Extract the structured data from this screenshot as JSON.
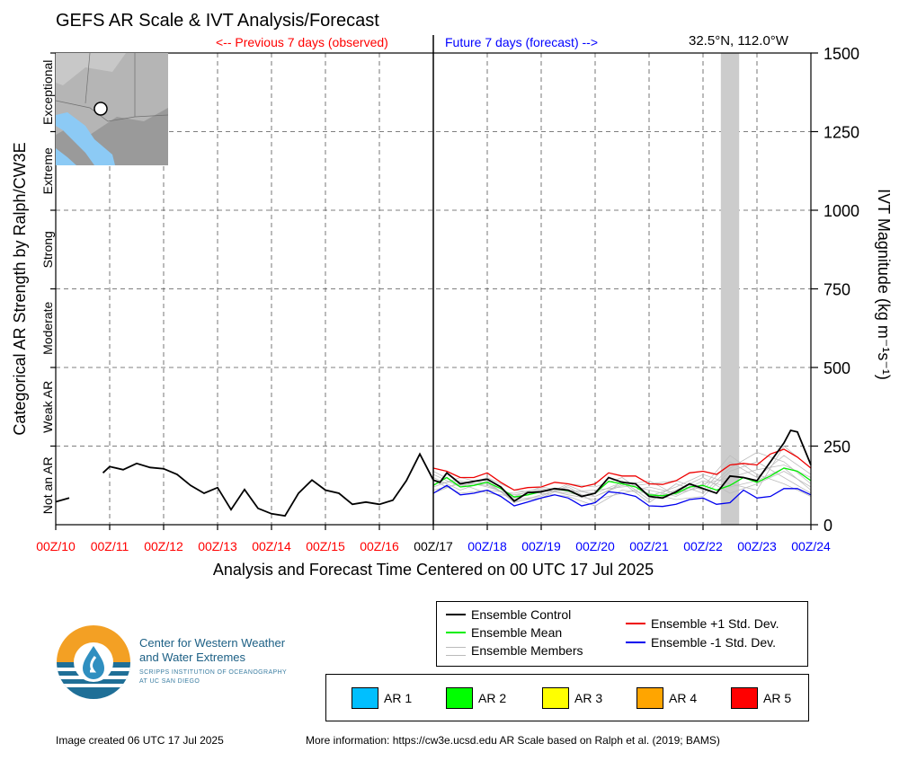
{
  "header": {
    "title": "GEFS AR Scale & IVT Analysis/Forecast",
    "previous_label": "<-- Previous 7 days (observed)",
    "future_label": "Future 7 days (forecast) -->",
    "location": "32.5°N, 112.0°W"
  },
  "chart_data": {
    "type": "line",
    "xlabel": "Analysis and Forecast Time Centered on 00 UTC 17 Jul 2025",
    "ylabel_right": "IVT Magnitude (kg m⁻¹s⁻¹)",
    "ylabel_left": "Categorical AR Strength by Ralph/CW3E",
    "ylim": [
      0,
      1500
    ],
    "y_ticks": [
      "0",
      "250",
      "500",
      "750",
      "1000",
      "1250",
      "1500"
    ],
    "x_range": [
      0,
      14
    ],
    "x_ticks": [
      {
        "label": "00Z/10",
        "period": "observed"
      },
      {
        "label": "00Z/11",
        "period": "observed"
      },
      {
        "label": "00Z/12",
        "period": "observed"
      },
      {
        "label": "00Z/13",
        "period": "observed"
      },
      {
        "label": "00Z/14",
        "period": "observed"
      },
      {
        "label": "00Z/15",
        "period": "observed"
      },
      {
        "label": "00Z/16",
        "period": "observed"
      },
      {
        "label": "00Z/17",
        "period": "now"
      },
      {
        "label": "00Z/18",
        "period": "forecast"
      },
      {
        "label": "00Z/19",
        "period": "forecast"
      },
      {
        "label": "00Z/20",
        "period": "forecast"
      },
      {
        "label": "00Z/21",
        "period": "forecast"
      },
      {
        "label": "00Z/22",
        "period": "forecast"
      },
      {
        "label": "00Z/23",
        "period": "forecast"
      },
      {
        "label": "00Z/24",
        "period": "forecast"
      }
    ],
    "categories": [
      {
        "label": "Not an AR",
        "y_min": 0,
        "y_max": 250
      },
      {
        "label": "Weak AR",
        "y_min": 250,
        "y_max": 500
      },
      {
        "label": "Moderate",
        "y_min": 500,
        "y_max": 750
      },
      {
        "label": "Strong",
        "y_min": 750,
        "y_max": 1000
      },
      {
        "label": "Extreme",
        "y_min": 1000,
        "y_max": 1250
      },
      {
        "label": "Exceptional",
        "y_min": 1250,
        "y_max": 1500
      }
    ],
    "now_x": 7,
    "shaded_span": [
      12.33,
      12.67
    ],
    "observed": {
      "segments": [
        [
          [
            0,
            73
          ],
          [
            0.25,
            85
          ]
        ],
        [
          [
            0.875,
            165
          ],
          [
            1,
            185
          ],
          [
            1.25,
            175
          ],
          [
            1.5,
            195
          ],
          [
            1.75,
            182
          ],
          [
            2,
            178
          ],
          [
            2.25,
            160
          ],
          [
            2.5,
            125
          ],
          [
            2.75,
            100
          ],
          [
            3,
            118
          ],
          [
            3.25,
            48
          ],
          [
            3.5,
            112
          ],
          [
            3.75,
            52
          ],
          [
            4,
            35
          ],
          [
            4.25,
            28
          ],
          [
            4.5,
            100
          ],
          [
            4.75,
            142
          ],
          [
            5,
            110
          ],
          [
            5.25,
            100
          ],
          [
            5.5,
            65
          ],
          [
            5.75,
            72
          ],
          [
            6,
            65
          ],
          [
            6.25,
            78
          ],
          [
            6.5,
            140
          ],
          [
            6.75,
            225
          ],
          [
            7,
            142
          ]
        ]
      ]
    },
    "series": [
      {
        "name": "Ensemble Control",
        "color": "#000000",
        "values": [
          [
            7,
            142
          ],
          [
            7.125,
            135
          ],
          [
            7.25,
            165
          ],
          [
            7.5,
            130
          ],
          [
            7.75,
            138
          ],
          [
            8,
            145
          ],
          [
            8.25,
            120
          ],
          [
            8.5,
            75
          ],
          [
            8.75,
            102
          ],
          [
            9,
            105
          ],
          [
            9.25,
            115
          ],
          [
            9.5,
            110
          ],
          [
            9.75,
            90
          ],
          [
            10,
            100
          ],
          [
            10.25,
            150
          ],
          [
            10.5,
            135
          ],
          [
            10.75,
            130
          ],
          [
            11,
            90
          ],
          [
            11.25,
            85
          ],
          [
            11.5,
            105
          ],
          [
            11.75,
            130
          ],
          [
            12,
            115
          ],
          [
            12.25,
            100
          ],
          [
            12.5,
            155
          ],
          [
            12.75,
            150
          ],
          [
            13,
            140
          ],
          [
            13.25,
            200
          ],
          [
            13.5,
            260
          ],
          [
            13.625,
            300
          ],
          [
            13.75,
            295
          ],
          [
            14,
            190
          ]
        ]
      },
      {
        "name": "Ensemble Mean",
        "color": "#00ee00",
        "values": [
          [
            7,
            125
          ],
          [
            7.25,
            150
          ],
          [
            7.5,
            120
          ],
          [
            7.75,
            125
          ],
          [
            8,
            135
          ],
          [
            8.25,
            115
          ],
          [
            8.5,
            88
          ],
          [
            8.75,
            95
          ],
          [
            9,
            105
          ],
          [
            9.25,
            115
          ],
          [
            9.5,
            108
          ],
          [
            9.75,
            90
          ],
          [
            10,
            100
          ],
          [
            10.25,
            138
          ],
          [
            10.5,
            130
          ],
          [
            10.75,
            120
          ],
          [
            11,
            95
          ],
          [
            11.25,
            92
          ],
          [
            11.5,
            100
          ],
          [
            11.75,
            120
          ],
          [
            12,
            125
          ],
          [
            12.25,
            110
          ],
          [
            12.5,
            125
          ],
          [
            12.75,
            150
          ],
          [
            13,
            135
          ],
          [
            13.25,
            155
          ],
          [
            13.5,
            180
          ],
          [
            13.75,
            170
          ],
          [
            14,
            140
          ]
        ]
      },
      {
        "name": "Ensemble +1 Std. Dev.",
        "color": "#ee0000",
        "values": [
          [
            7,
            180
          ],
          [
            7.25,
            170
          ],
          [
            7.5,
            150
          ],
          [
            7.75,
            150
          ],
          [
            8,
            165
          ],
          [
            8.25,
            135
          ],
          [
            8.5,
            110
          ],
          [
            8.75,
            118
          ],
          [
            9,
            120
          ],
          [
            9.25,
            135
          ],
          [
            9.5,
            130
          ],
          [
            9.75,
            120
          ],
          [
            10,
            130
          ],
          [
            10.25,
            165
          ],
          [
            10.5,
            155
          ],
          [
            10.75,
            155
          ],
          [
            11,
            130
          ],
          [
            11.25,
            128
          ],
          [
            11.5,
            140
          ],
          [
            11.75,
            165
          ],
          [
            12,
            170
          ],
          [
            12.25,
            160
          ],
          [
            12.5,
            190
          ],
          [
            12.75,
            195
          ],
          [
            13,
            190
          ],
          [
            13.25,
            225
          ],
          [
            13.5,
            240
          ],
          [
            13.75,
            215
          ],
          [
            14,
            180
          ]
        ]
      },
      {
        "name": "Ensemble -1 Std. Dev.",
        "color": "#0000ee",
        "values": [
          [
            7,
            100
          ],
          [
            7.25,
            125
          ],
          [
            7.5,
            95
          ],
          [
            7.75,
            100
          ],
          [
            8,
            110
          ],
          [
            8.25,
            90
          ],
          [
            8.5,
            60
          ],
          [
            8.75,
            72
          ],
          [
            9,
            85
          ],
          [
            9.25,
            95
          ],
          [
            9.5,
            85
          ],
          [
            9.75,
            60
          ],
          [
            10,
            70
          ],
          [
            10.25,
            105
          ],
          [
            10.5,
            100
          ],
          [
            10.75,
            90
          ],
          [
            11,
            60
          ],
          [
            11.25,
            58
          ],
          [
            11.5,
            65
          ],
          [
            11.75,
            80
          ],
          [
            12,
            85
          ],
          [
            12.25,
            65
          ],
          [
            12.5,
            70
          ],
          [
            12.75,
            110
          ],
          [
            13,
            85
          ],
          [
            13.25,
            90
          ],
          [
            13.5,
            115
          ],
          [
            13.75,
            115
          ],
          [
            14,
            95
          ]
        ]
      }
    ],
    "members": [
      {
        "values": [
          [
            7,
            130
          ],
          [
            7.5,
            140
          ],
          [
            8,
            120
          ],
          [
            8.5,
            95
          ],
          [
            9,
            110
          ],
          [
            9.5,
            100
          ],
          [
            10,
            90
          ],
          [
            10.5,
            130
          ],
          [
            11,
            110
          ],
          [
            11.5,
            90
          ],
          [
            12,
            130
          ],
          [
            12.5,
            150
          ],
          [
            13,
            175
          ],
          [
            13.5,
            190
          ],
          [
            14,
            150
          ]
        ]
      },
      {
        "values": [
          [
            7,
            150
          ],
          [
            7.5,
            110
          ],
          [
            8,
            140
          ],
          [
            8.5,
            70
          ],
          [
            9,
            95
          ],
          [
            9.5,
            120
          ],
          [
            10,
            70
          ],
          [
            10.5,
            140
          ],
          [
            11,
            80
          ],
          [
            11.5,
            110
          ],
          [
            12,
            150
          ],
          [
            12.5,
            100
          ],
          [
            13,
            130
          ],
          [
            13.5,
            170
          ],
          [
            14,
            120
          ]
        ]
      },
      {
        "values": [
          [
            7,
            110
          ],
          [
            7.5,
            130
          ],
          [
            8,
            100
          ],
          [
            8.5,
            90
          ],
          [
            9,
            120
          ],
          [
            9.5,
            105
          ],
          [
            10,
            110
          ],
          [
            10.5,
            120
          ],
          [
            11,
            130
          ],
          [
            11.5,
            140
          ],
          [
            12,
            110
          ],
          [
            12.5,
            200
          ],
          [
            13,
            150
          ],
          [
            13.5,
            220
          ],
          [
            14,
            160
          ]
        ]
      },
      {
        "values": [
          [
            7,
            160
          ],
          [
            7.5,
            120
          ],
          [
            8,
            150
          ],
          [
            8.5,
            110
          ],
          [
            9,
            100
          ],
          [
            9.5,
            90
          ],
          [
            10,
            60
          ],
          [
            10.5,
            110
          ],
          [
            11,
            100
          ],
          [
            11.5,
            80
          ],
          [
            12,
            90
          ],
          [
            12.5,
            170
          ],
          [
            13,
            200
          ],
          [
            13.5,
            150
          ],
          [
            14,
            100
          ]
        ]
      },
      {
        "values": [
          [
            7,
            120
          ],
          [
            7.5,
            150
          ],
          [
            8,
            130
          ],
          [
            8.5,
            80
          ],
          [
            9,
            90
          ],
          [
            9.5,
            130
          ],
          [
            10,
            120
          ],
          [
            10.5,
            150
          ],
          [
            11,
            90
          ],
          [
            11.5,
            120
          ],
          [
            12,
            160
          ],
          [
            12.5,
            130
          ],
          [
            13,
            110
          ],
          [
            13.5,
            250
          ],
          [
            14,
            180
          ]
        ]
      },
      {
        "values": [
          [
            7,
            140
          ],
          [
            7.5,
            100
          ],
          [
            8,
            110
          ],
          [
            8.5,
            100
          ],
          [
            9,
            115
          ],
          [
            9.5,
            95
          ],
          [
            10,
            80
          ],
          [
            10.5,
            100
          ],
          [
            11,
            120
          ],
          [
            11.5,
            100
          ],
          [
            12,
            120
          ],
          [
            12.5,
            220
          ],
          [
            13,
            160
          ],
          [
            13.5,
            130
          ],
          [
            14,
            90
          ]
        ]
      },
      {
        "values": [
          [
            7,
            100
          ],
          [
            7.5,
            135
          ],
          [
            8,
            125
          ],
          [
            8.5,
            85
          ],
          [
            9,
            105
          ],
          [
            9.5,
            110
          ],
          [
            10,
            100
          ],
          [
            10.5,
            135
          ],
          [
            11,
            70
          ],
          [
            11.5,
            130
          ],
          [
            12,
            100
          ],
          [
            12.5,
            180
          ],
          [
            13,
            230
          ],
          [
            13.5,
            200
          ],
          [
            14,
            130
          ]
        ]
      },
      {
        "values": [
          [
            7,
            170
          ],
          [
            7.5,
            125
          ],
          [
            8,
            135
          ],
          [
            8.5,
            75
          ],
          [
            9,
            85
          ],
          [
            9.5,
            125
          ],
          [
            10,
            90
          ],
          [
            10.5,
            125
          ],
          [
            11,
            140
          ],
          [
            11.5,
            95
          ],
          [
            12,
            140
          ],
          [
            12.5,
            120
          ],
          [
            13,
            140
          ],
          [
            13.5,
            180
          ],
          [
            14,
            110
          ]
        ]
      }
    ],
    "legend": {
      "control": "Ensemble Control",
      "mean": "Ensemble Mean",
      "members": "Ensemble Members",
      "plus_std": "Ensemble +1 Std. Dev.",
      "minus_std": "Ensemble -1 Std. Dev."
    },
    "ar_scale_legend": [
      {
        "label": "AR 1",
        "color": "#00bfff"
      },
      {
        "label": "AR 2",
        "color": "#00ff00"
      },
      {
        "label": "AR 3",
        "color": "#ffff00"
      },
      {
        "label": "AR 4",
        "color": "#ffa500"
      },
      {
        "label": "AR 5",
        "color": "#ff0000"
      }
    ]
  },
  "branding": {
    "org_line1": "Center for Western Weather",
    "org_line2": "and Water Extremes",
    "sub_line1": "SCRIPPS INSTITUTION OF OCEANOGRAPHY",
    "sub_line2": "AT UC SAN DIEGO"
  },
  "footer": {
    "created": "Image created 06 UTC 17 Jul 2025",
    "more_info": "More information: https://cw3e.ucsd.edu AR Scale based on Ralph et al. (2019; BAMS)"
  }
}
